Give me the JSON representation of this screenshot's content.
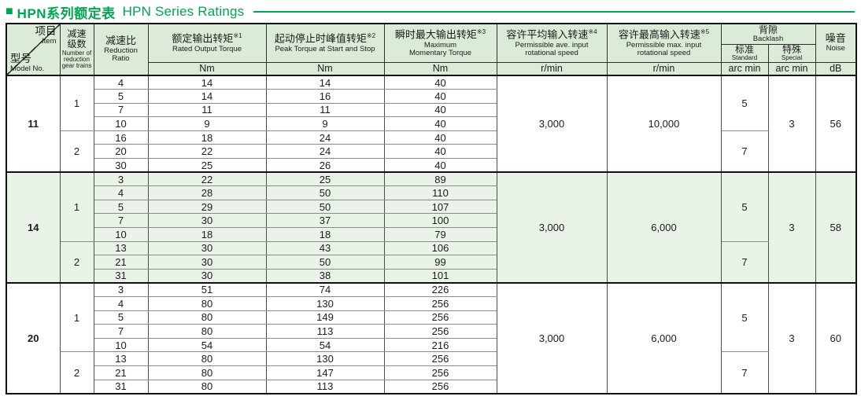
{
  "title": {
    "bullet": "■",
    "zh": "HPN系列额定表",
    "en": "HPN Series Ratings"
  },
  "colors": {
    "accent_green": "#00a550",
    "band_green": "#e9f3e7",
    "header_green": "#dcebd7",
    "grid_dark": "#111111",
    "grid_gray": "#8a8a8a"
  },
  "header": {
    "diagonal": {
      "item_zh": "项目",
      "item_en": "Item",
      "model_zh": "型号",
      "model_en": "Model No."
    },
    "stages": {
      "zh": "减速\n级数",
      "en": "Number of\nreduction\ngear trains"
    },
    "ratio": {
      "zh": "减速比",
      "en": "Reduction\nRatio"
    },
    "rated": {
      "zh": "额定输出转矩",
      "sup": "※1",
      "en": "Rated Output Torque",
      "unit": "Nm"
    },
    "peak": {
      "zh": "起动停止时峰值转矩",
      "sup": "※2",
      "en": "Peak Torque at Start and Stop",
      "unit": "Nm"
    },
    "momentary": {
      "zh": "瞬时最大输出转矩",
      "sup": "※3",
      "en": "Maximum\nMomentary Torque",
      "unit": "Nm"
    },
    "avg_speed": {
      "zh": "容许平均输入转速",
      "sup": "※4",
      "en": "Permissible ave. input\nrotational speed",
      "unit": "r/min"
    },
    "max_speed": {
      "zh": "容许最高输入转速",
      "sup": "※5",
      "en": "Permissible max. input\nrotational speed",
      "unit": "r/min"
    },
    "backlash": {
      "zh": "背隙",
      "en": "Backlash",
      "standard_zh": "标准",
      "standard_en": "Standard",
      "special_zh": "特殊",
      "special_en": "Special",
      "unit": "arc min"
    },
    "noise": {
      "zh": "噪音",
      "en": "Noise",
      "unit": "dB"
    }
  },
  "sections": [
    {
      "model": "11",
      "shaded": false,
      "avg_speed": "3,000",
      "max_speed": "10,000",
      "special": "3",
      "noise": "56",
      "groups": [
        {
          "stages": "1",
          "standard": "5",
          "rows": [
            [
              "4",
              "14",
              "14",
              "40"
            ],
            [
              "5",
              "14",
              "16",
              "40"
            ],
            [
              "7",
              "11",
              "11",
              "40"
            ],
            [
              "10",
              "9",
              "9",
              "40"
            ]
          ]
        },
        {
          "stages": "2",
          "standard": "7",
          "rows": [
            [
              "16",
              "18",
              "24",
              "40"
            ],
            [
              "20",
              "22",
              "24",
              "40"
            ],
            [
              "30",
              "25",
              "26",
              "40"
            ]
          ]
        }
      ]
    },
    {
      "model": "14",
      "shaded": true,
      "avg_speed": "3,000",
      "max_speed": "6,000",
      "special": "3",
      "noise": "58",
      "groups": [
        {
          "stages": "1",
          "standard": "5",
          "rows": [
            [
              "3",
              "22",
              "25",
              "89"
            ],
            [
              "4",
              "28",
              "50",
              "110"
            ],
            [
              "5",
              "29",
              "50",
              "107"
            ],
            [
              "7",
              "30",
              "37",
              "100"
            ],
            [
              "10",
              "18",
              "18",
              "79"
            ]
          ]
        },
        {
          "stages": "2",
          "standard": "7",
          "rows": [
            [
              "13",
              "30",
              "43",
              "106"
            ],
            [
              "21",
              "30",
              "50",
              "99"
            ],
            [
              "31",
              "30",
              "38",
              "101"
            ]
          ]
        }
      ]
    },
    {
      "model": "20",
      "shaded": false,
      "avg_speed": "3,000",
      "max_speed": "6,000",
      "special": "3",
      "noise": "60",
      "groups": [
        {
          "stages": "1",
          "standard": "5",
          "rows": [
            [
              "3",
              "51",
              "74",
              "226"
            ],
            [
              "4",
              "80",
              "130",
              "256"
            ],
            [
              "5",
              "80",
              "149",
              "256"
            ],
            [
              "7",
              "80",
              "113",
              "256"
            ],
            [
              "10",
              "54",
              "54",
              "216"
            ]
          ]
        },
        {
          "stages": "2",
          "standard": "7",
          "rows": [
            [
              "13",
              "80",
              "130",
              "256"
            ],
            [
              "21",
              "80",
              "147",
              "256"
            ],
            [
              "31",
              "80",
              "113",
              "256"
            ]
          ]
        }
      ]
    }
  ]
}
